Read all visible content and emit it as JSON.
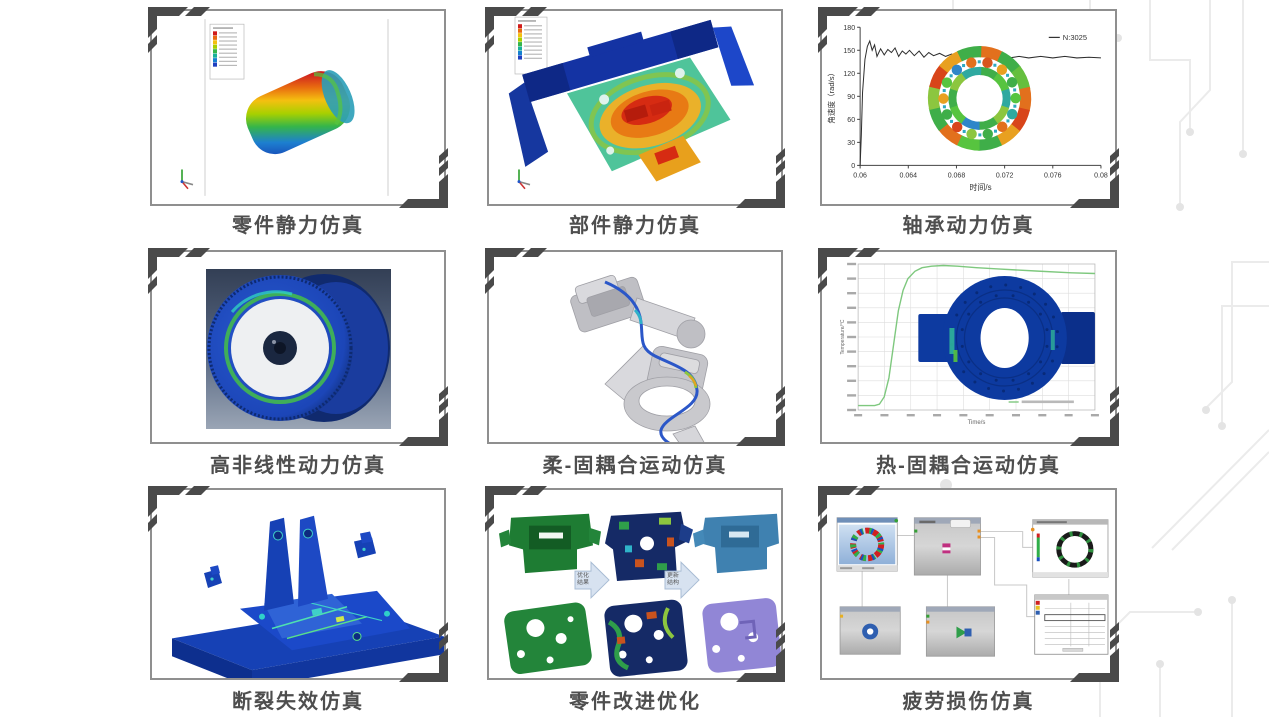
{
  "cards": [
    {
      "name": "part-static-simulation",
      "caption": "零件静力仿真"
    },
    {
      "name": "assembly-static-simulation",
      "caption": "部件静力仿真"
    },
    {
      "name": "bearing-dynamics-simulation",
      "caption": "轴承动力仿真"
    },
    {
      "name": "high-nonlinear-dynamics-simulation",
      "caption": "高非线性动力仿真"
    },
    {
      "name": "flex-rigid-coupled-motion-simulation",
      "caption": "柔-固耦合运动仿真"
    },
    {
      "name": "thermal-solid-coupled-motion-simulation",
      "caption": "热-固耦合运动仿真"
    },
    {
      "name": "fracture-failure-simulation",
      "caption": "断裂失效仿真"
    },
    {
      "name": "part-improvement-optimization",
      "caption": "零件改进优化",
      "arrows": [
        {
          "line1": "优化",
          "line2": "结果"
        },
        {
          "line1": "更新",
          "line2": "结构"
        }
      ]
    },
    {
      "name": "fatigue-damage-simulation",
      "caption": "疲劳损伤仿真"
    }
  ],
  "chart_data": [
    {
      "type": "line",
      "title": "",
      "xlabel": "时间/s",
      "ylabel": "角速度（rad/s）",
      "legend": "N:3025",
      "legend_position": "top-right",
      "xlim": [
        0.06,
        0.08
      ],
      "ylim": [
        0,
        180
      ],
      "x_ticks": [
        0.06,
        0.064,
        0.068,
        0.072,
        0.076,
        0.08
      ],
      "y_ticks": [
        0,
        30,
        60,
        90,
        120,
        150,
        180
      ],
      "grid": false,
      "series": [
        {
          "name": "N:3025",
          "color": "#2e2e2e",
          "points": [
            [
              0.06,
              0
            ],
            [
              0.0601,
              40
            ],
            [
              0.0602,
              95
            ],
            [
              0.0604,
              138
            ],
            [
              0.0606,
              155
            ],
            [
              0.0608,
              162
            ],
            [
              0.061,
              150
            ],
            [
              0.0612,
              157
            ],
            [
              0.0614,
              142
            ],
            [
              0.0617,
              152
            ],
            [
              0.062,
              144
            ],
            [
              0.0623,
              151
            ],
            [
              0.0626,
              147
            ],
            [
              0.0629,
              153
            ],
            [
              0.0632,
              142
            ],
            [
              0.0635,
              149
            ],
            [
              0.0638,
              145
            ],
            [
              0.0641,
              150
            ],
            [
              0.0645,
              143
            ],
            [
              0.0649,
              149
            ],
            [
              0.0653,
              141
            ],
            [
              0.0657,
              147
            ],
            [
              0.0661,
              143
            ],
            [
              0.0666,
              146
            ],
            [
              0.0671,
              142
            ],
            [
              0.0676,
              145
            ],
            [
              0.0681,
              141
            ],
            [
              0.0687,
              144
            ],
            [
              0.0693,
              141
            ],
            [
              0.07,
              143
            ],
            [
              0.0708,
              140
            ],
            [
              0.0716,
              142
            ],
            [
              0.0724,
              140
            ],
            [
              0.0732,
              142
            ],
            [
              0.074,
              140
            ],
            [
              0.075,
              142
            ],
            [
              0.076,
              140
            ],
            [
              0.077,
              142
            ],
            [
              0.078,
              140
            ],
            [
              0.079,
              141
            ],
            [
              0.08,
              140
            ]
          ]
        }
      ]
    },
    {
      "type": "line",
      "title": "",
      "xlabel": "Time/s",
      "ylabel": "Temperature/°C",
      "grid": true,
      "tick_labels": "present but illegible at source resolution",
      "legend_visible": true,
      "series": [
        {
          "name": "temperature-curve",
          "color": "#7ec87e",
          "points_norm": [
            [
              0,
              0.03
            ],
            [
              0.07,
              0.03
            ],
            [
              0.09,
              0.04
            ],
            [
              0.11,
              0.09
            ],
            [
              0.13,
              0.22
            ],
            [
              0.15,
              0.45
            ],
            [
              0.17,
              0.68
            ],
            [
              0.19,
              0.82
            ],
            [
              0.21,
              0.9
            ],
            [
              0.24,
              0.95
            ],
            [
              0.27,
              0.975
            ],
            [
              0.31,
              0.985
            ],
            [
              0.36,
              0.99
            ],
            [
              0.42,
              0.985
            ],
            [
              0.5,
              0.975
            ],
            [
              0.6,
              0.965
            ],
            [
              0.75,
              0.952
            ],
            [
              0.9,
              0.94
            ],
            [
              1,
              0.935
            ]
          ]
        }
      ]
    }
  ],
  "decor": {
    "bracket_color": "#4a4a4a",
    "card_border_color": "#8f8f8f",
    "caption_color": "#4e4e4e",
    "circuit_color": "#ebebeb",
    "bearing_ring": {
      "race_colors": [
        "#e2701d",
        "#3fae49",
        "#65bf3e",
        "#e2701d",
        "#d8451a",
        "#e8a020",
        "#3fae49",
        "#57c43f",
        "#e2701d",
        "#3fae49",
        "#8cc63f",
        "#d8451a",
        "#e8a020",
        "#3fae49"
      ],
      "ball_colors": [
        "#d8551e",
        "#e8a020",
        "#3fae49",
        "#57c43f",
        "#2fa9a0",
        "#e2701d",
        "#3fae49",
        "#8cc63f",
        "#d8451a",
        "#3fae49",
        "#e8a020",
        "#57c43f",
        "#2f86c9",
        "#e2701d"
      ],
      "inner_colors": [
        "#3fae49",
        "#57c43f",
        "#2fa9a0",
        "#8cc63f",
        "#3fae49",
        "#2f86c9",
        "#57c43f",
        "#3fae49",
        "#8cc63f",
        "#2fa9a0"
      ]
    }
  }
}
